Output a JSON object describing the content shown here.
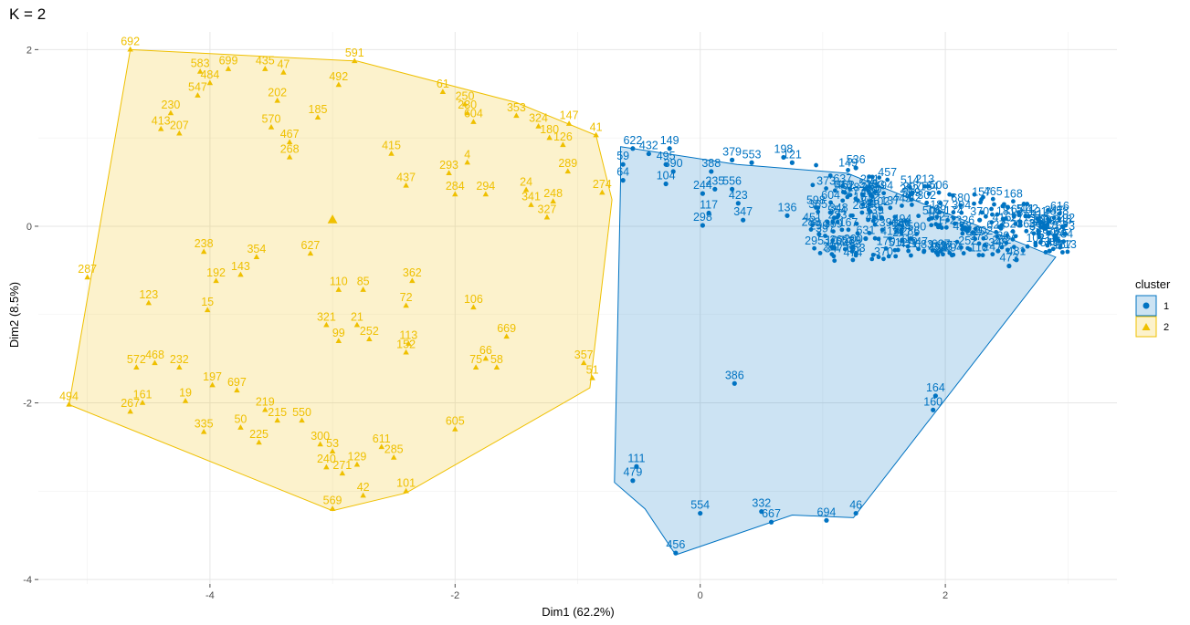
{
  "chart_data": {
    "type": "scatter",
    "title": "K = 2",
    "xlabel": "Dim1 (62.2%)",
    "ylabel": "Dim2 (8.5%)",
    "xlim": [
      -5.4,
      3.4
    ],
    "ylim": [
      -4.05,
      2.2
    ],
    "xticks": [
      -4,
      -2,
      0,
      2
    ],
    "yticks": [
      -4,
      -2,
      0,
      2
    ],
    "grid": true,
    "legend": {
      "title": "cluster",
      "position": "right",
      "entries": [
        "1",
        "2"
      ]
    },
    "colors": {
      "1": "#0073C2",
      "2": "#EFC000"
    },
    "clusters": [
      {
        "name": "1",
        "marker": "circle",
        "hull": [
          [
            -0.65,
            0.9
          ],
          [
            0.3,
            0.7
          ],
          [
            1.2,
            0.6
          ],
          [
            2.9,
            -0.35
          ],
          [
            1.25,
            -3.3
          ],
          [
            0.75,
            -3.27
          ],
          [
            -0.2,
            -3.72
          ],
          [
            -0.45,
            -3.2
          ],
          [
            -0.7,
            -2.9
          ],
          [
            -0.65,
            0.5
          ]
        ],
        "points": [
          {
            "label": "622",
            "x": -0.55,
            "y": 0.88
          },
          {
            "label": "432",
            "x": -0.42,
            "y": 0.82
          },
          {
            "label": "149",
            "x": -0.25,
            "y": 0.88
          },
          {
            "label": "59",
            "x": -0.63,
            "y": 0.7
          },
          {
            "label": "64",
            "x": -0.63,
            "y": 0.52
          },
          {
            "label": "495",
            "x": -0.28,
            "y": 0.7
          },
          {
            "label": "390",
            "x": -0.22,
            "y": 0.62
          },
          {
            "label": "104",
            "x": -0.28,
            "y": 0.48
          },
          {
            "label": "388",
            "x": 0.09,
            "y": 0.62
          },
          {
            "label": "379",
            "x": 0.26,
            "y": 0.75
          },
          {
            "label": "553",
            "x": 0.42,
            "y": 0.72
          },
          {
            "label": "198",
            "x": 0.68,
            "y": 0.78
          },
          {
            "label": "121",
            "x": 0.75,
            "y": 0.72
          },
          {
            "label": "244",
            "x": 0.02,
            "y": 0.37
          },
          {
            "label": "235",
            "x": 0.12,
            "y": 0.42
          },
          {
            "label": "556",
            "x": 0.26,
            "y": 0.42
          },
          {
            "label": "117",
            "x": 0.07,
            "y": 0.15
          },
          {
            "label": "298",
            "x": 0.02,
            "y": 0.01
          },
          {
            "label": "423",
            "x": 0.31,
            "y": 0.26
          },
          {
            "label": "347",
            "x": 0.35,
            "y": 0.07
          },
          {
            "label": "136",
            "x": 0.71,
            "y": 0.12
          },
          {
            "label": "386",
            "x": 0.28,
            "y": -1.78
          },
          {
            "label": "299",
            "x": 0.97,
            "y": -0.09
          },
          {
            "label": "536",
            "x": 1.27,
            "y": 0.66
          },
          {
            "label": "631",
            "x": 1.35,
            "y": -0.14
          },
          {
            "label": "370",
            "x": 2.28,
            "y": 0.07
          },
          {
            "label": "549",
            "x": 2.85,
            "y": -0.28
          },
          {
            "label": "348",
            "x": 2.43,
            "y": -0.28
          },
          {
            "label": "481",
            "x": 2.58,
            "y": -0.38
          },
          {
            "label": "473",
            "x": 2.52,
            "y": -0.45
          },
          {
            "label": "160",
            "x": 1.9,
            "y": -2.08
          },
          {
            "label": "164",
            "x": 1.92,
            "y": -1.92
          },
          {
            "label": "111",
            "x": -0.52,
            "y": -2.72
          },
          {
            "label": "479",
            "x": -0.55,
            "y": -2.88
          },
          {
            "label": "554",
            "x": 0.0,
            "y": -3.25
          },
          {
            "label": "332",
            "x": 0.5,
            "y": -3.23
          },
          {
            "label": "667",
            "x": 0.58,
            "y": -3.35
          },
          {
            "label": "694",
            "x": 1.03,
            "y": -3.33
          },
          {
            "label": "46",
            "x": 1.27,
            "y": -3.25
          },
          {
            "label": "456",
            "x": -0.2,
            "y": -3.7
          }
        ]
      },
      {
        "name": "2",
        "marker": "triangle",
        "hull": [
          [
            -4.65,
            2.0
          ],
          [
            -2.8,
            1.87
          ],
          [
            -1.5,
            1.4
          ],
          [
            -0.85,
            1.03
          ],
          [
            -0.72,
            0.3
          ],
          [
            -0.9,
            -1.83
          ],
          [
            -2.4,
            -3.02
          ],
          [
            -3.0,
            -3.22
          ],
          [
            -5.15,
            -2.02
          ]
        ],
        "points": [
          {
            "label": "692",
            "x": -4.65,
            "y": 2.0
          },
          {
            "label": "591",
            "x": -2.82,
            "y": 1.87
          },
          {
            "label": "583",
            "x": -4.08,
            "y": 1.75
          },
          {
            "label": "699",
            "x": -3.85,
            "y": 1.78
          },
          {
            "label": "435",
            "x": -3.55,
            "y": 1.78
          },
          {
            "label": "47",
            "x": -3.4,
            "y": 1.74
          },
          {
            "label": "484",
            "x": -4.0,
            "y": 1.62
          },
          {
            "label": "547",
            "x": -4.1,
            "y": 1.48
          },
          {
            "label": "230",
            "x": -4.32,
            "y": 1.28
          },
          {
            "label": "413",
            "x": -4.4,
            "y": 1.1
          },
          {
            "label": "207",
            "x": -4.25,
            "y": 1.05
          },
          {
            "label": "202",
            "x": -3.45,
            "y": 1.42
          },
          {
            "label": "570",
            "x": -3.5,
            "y": 1.12
          },
          {
            "label": "492",
            "x": -2.95,
            "y": 1.6
          },
          {
            "label": "185",
            "x": -3.12,
            "y": 1.23
          },
          {
            "label": "61",
            "x": -2.1,
            "y": 1.52
          },
          {
            "label": "250",
            "x": -1.92,
            "y": 1.38
          },
          {
            "label": "230",
            "x": -1.9,
            "y": 1.28
          },
          {
            "label": "604",
            "x": -1.85,
            "y": 1.18
          },
          {
            "label": "353",
            "x": -1.5,
            "y": 1.25
          },
          {
            "label": "324",
            "x": -1.32,
            "y": 1.13
          },
          {
            "label": "147",
            "x": -1.07,
            "y": 1.16
          },
          {
            "label": "180",
            "x": -1.23,
            "y": 1.0
          },
          {
            "label": "126",
            "x": -1.12,
            "y": 0.92
          },
          {
            "label": "41",
            "x": -0.85,
            "y": 1.03
          },
          {
            "label": "467",
            "x": -3.35,
            "y": 0.95
          },
          {
            "label": "268",
            "x": -3.35,
            "y": 0.78
          },
          {
            "label": "415",
            "x": -2.52,
            "y": 0.82
          },
          {
            "label": "4",
            "x": -1.9,
            "y": 0.72
          },
          {
            "label": "293",
            "x": -2.05,
            "y": 0.6
          },
          {
            "label": "437",
            "x": -2.4,
            "y": 0.46
          },
          {
            "label": "284",
            "x": -2.0,
            "y": 0.36
          },
          {
            "label": "294",
            "x": -1.75,
            "y": 0.36
          },
          {
            "label": "289",
            "x": -1.08,
            "y": 0.62
          },
          {
            "label": "274",
            "x": -0.8,
            "y": 0.38
          },
          {
            "label": "341",
            "x": -1.38,
            "y": 0.24
          },
          {
            "label": "248",
            "x": -1.2,
            "y": 0.28
          },
          {
            "label": "327",
            "x": -1.25,
            "y": 0.1
          },
          {
            "label": "24",
            "x": -1.42,
            "y": 0.41
          },
          {
            "label": "238",
            "x": -4.05,
            "y": -0.29
          },
          {
            "label": "354",
            "x": -3.62,
            "y": -0.35
          },
          {
            "label": "627",
            "x": -3.18,
            "y": -0.31
          },
          {
            "label": "287",
            "x": -5.0,
            "y": -0.58
          },
          {
            "label": "123",
            "x": -4.5,
            "y": -0.87
          },
          {
            "label": "192",
            "x": -3.95,
            "y": -0.62
          },
          {
            "label": "143",
            "x": -3.75,
            "y": -0.55
          },
          {
            "label": "362",
            "x": -2.35,
            "y": -0.62
          },
          {
            "label": "72",
            "x": -2.4,
            "y": -0.9
          },
          {
            "label": "106",
            "x": -1.85,
            "y": -0.92
          },
          {
            "label": "110",
            "x": -2.95,
            "y": -0.72
          },
          {
            "label": "85",
            "x": -2.75,
            "y": -0.72
          },
          {
            "label": "21",
            "x": -2.8,
            "y": -1.12
          },
          {
            "label": "321",
            "x": -3.05,
            "y": -1.12
          },
          {
            "label": "15",
            "x": -4.02,
            "y": -0.95
          },
          {
            "label": "99",
            "x": -2.95,
            "y": -1.3
          },
          {
            "label": "252",
            "x": -2.7,
            "y": -1.28
          },
          {
            "label": "113",
            "x": -2.38,
            "y": -1.33
          },
          {
            "label": "152",
            "x": -2.4,
            "y": -1.43
          },
          {
            "label": "669",
            "x": -1.58,
            "y": -1.25
          },
          {
            "label": "66",
            "x": -1.75,
            "y": -1.5
          },
          {
            "label": "75",
            "x": -1.83,
            "y": -1.6
          },
          {
            "label": "58",
            "x": -1.66,
            "y": -1.6
          },
          {
            "label": "357",
            "x": -0.95,
            "y": -1.55
          },
          {
            "label": "51",
            "x": -0.88,
            "y": -1.72
          },
          {
            "label": "572",
            "x": -4.6,
            "y": -1.6
          },
          {
            "label": "468",
            "x": -4.45,
            "y": -1.55
          },
          {
            "label": "232",
            "x": -4.25,
            "y": -1.6
          },
          {
            "label": "494",
            "x": -5.15,
            "y": -2.02
          },
          {
            "label": "161",
            "x": -4.55,
            "y": -2.0
          },
          {
            "label": "267",
            "x": -4.65,
            "y": -2.1
          },
          {
            "label": "19",
            "x": -4.2,
            "y": -1.98
          },
          {
            "label": "197",
            "x": -3.98,
            "y": -1.8
          },
          {
            "label": "697",
            "x": -3.78,
            "y": -1.86
          },
          {
            "label": "219",
            "x": -3.55,
            "y": -2.08
          },
          {
            "label": "550",
            "x": -3.25,
            "y": -2.2
          },
          {
            "label": "215",
            "x": -3.45,
            "y": -2.2
          },
          {
            "label": "50",
            "x": -3.75,
            "y": -2.28
          },
          {
            "label": "335",
            "x": -4.05,
            "y": -2.33
          },
          {
            "label": "225",
            "x": -3.6,
            "y": -2.45
          },
          {
            "label": "300",
            "x": -3.1,
            "y": -2.47
          },
          {
            "label": "53",
            "x": -3.0,
            "y": -2.55
          },
          {
            "label": "611",
            "x": -2.6,
            "y": -2.5
          },
          {
            "label": "285",
            "x": -2.5,
            "y": -2.62
          },
          {
            "label": "129",
            "x": -2.8,
            "y": -2.7
          },
          {
            "label": "240",
            "x": -3.05,
            "y": -2.73
          },
          {
            "label": "271",
            "x": -2.92,
            "y": -2.8
          },
          {
            "label": "605",
            "x": -2.0,
            "y": -2.3
          },
          {
            "label": "42",
            "x": -2.75,
            "y": -3.05
          },
          {
            "label": "101",
            "x": -2.4,
            "y": -3.0
          },
          {
            "label": "569",
            "x": -3.0,
            "y": -3.2
          }
        ]
      }
    ],
    "centroid": {
      "x": -3.0,
      "y": 0.07
    },
    "dense_region": {
      "x_min": 0.9,
      "x_max": 3.0,
      "y_min": -0.4,
      "y_max": 0.75
    }
  }
}
